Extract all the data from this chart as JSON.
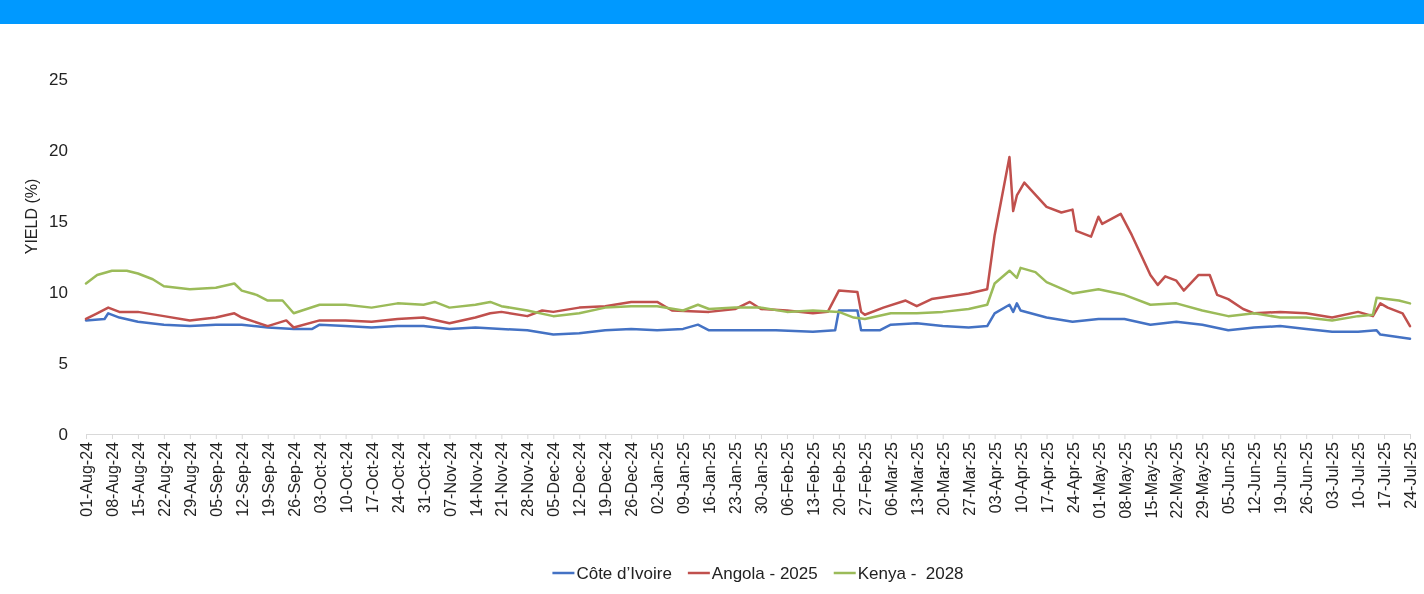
{
  "chart_data": {
    "type": "line",
    "ylabel": "YIELD (%)",
    "ylim": [
      0,
      25
    ],
    "yticks": [
      0,
      5,
      10,
      15,
      20,
      25
    ],
    "xlim": [
      "2024-08-01",
      "2025-07-24"
    ],
    "xticks": [
      {
        "value": "2024-08-01",
        "label": "01-Aug-24"
      },
      {
        "value": "2024-08-08",
        "label": "08-Aug-24"
      },
      {
        "value": "2024-08-15",
        "label": "15-Aug-24"
      },
      {
        "value": "2024-08-22",
        "label": "22-Aug-24"
      },
      {
        "value": "2024-08-29",
        "label": "29-Aug-24"
      },
      {
        "value": "2024-09-05",
        "label": "05-Sep-24"
      },
      {
        "value": "2024-09-12",
        "label": "12-Sep-24"
      },
      {
        "value": "2024-09-19",
        "label": "19-Sep-24"
      },
      {
        "value": "2024-09-26",
        "label": "26-Sep-24"
      },
      {
        "value": "2024-10-03",
        "label": "03-Oct-24"
      },
      {
        "value": "2024-10-10",
        "label": "10-Oct-24"
      },
      {
        "value": "2024-10-17",
        "label": "17-Oct-24"
      },
      {
        "value": "2024-10-24",
        "label": "24-Oct-24"
      },
      {
        "value": "2024-10-31",
        "label": "31-Oct-24"
      },
      {
        "value": "2024-11-07",
        "label": "07-Nov-24"
      },
      {
        "value": "2024-11-14",
        "label": "14-Nov-24"
      },
      {
        "value": "2024-11-21",
        "label": "21-Nov-24"
      },
      {
        "value": "2024-11-28",
        "label": "28-Nov-24"
      },
      {
        "value": "2024-12-05",
        "label": "05-Dec-24"
      },
      {
        "value": "2024-12-12",
        "label": "12-Dec-24"
      },
      {
        "value": "2024-12-19",
        "label": "19-Dec-24"
      },
      {
        "value": "2024-12-26",
        "label": "26-Dec-24"
      },
      {
        "value": "2025-01-02",
        "label": "02-Jan-25"
      },
      {
        "value": "2025-01-09",
        "label": "09-Jan-25"
      },
      {
        "value": "2025-01-16",
        "label": "16-Jan-25"
      },
      {
        "value": "2025-01-23",
        "label": "23-Jan-25"
      },
      {
        "value": "2025-01-30",
        "label": "30-Jan-25"
      },
      {
        "value": "2025-02-06",
        "label": "06-Feb-25"
      },
      {
        "value": "2025-02-13",
        "label": "13-Feb-25"
      },
      {
        "value": "2025-02-20",
        "label": "20-Feb-25"
      },
      {
        "value": "2025-02-27",
        "label": "27-Feb-25"
      },
      {
        "value": "2025-03-06",
        "label": "06-Mar-25"
      },
      {
        "value": "2025-03-13",
        "label": "13-Mar-25"
      },
      {
        "value": "2025-03-20",
        "label": "20-Mar-25"
      },
      {
        "value": "2025-03-27",
        "label": "27-Mar-25"
      },
      {
        "value": "2025-04-03",
        "label": "03-Apr-25"
      },
      {
        "value": "2025-04-10",
        "label": "10-Apr-25"
      },
      {
        "value": "2025-04-17",
        "label": "17-Apr-25"
      },
      {
        "value": "2025-04-24",
        "label": "24-Apr-25"
      },
      {
        "value": "2025-05-01",
        "label": "01-May-25"
      },
      {
        "value": "2025-05-08",
        "label": "08-May-25"
      },
      {
        "value": "2025-05-15",
        "label": "15-May-25"
      },
      {
        "value": "2025-05-22",
        "label": "22-May-25"
      },
      {
        "value": "2025-05-29",
        "label": "29-May-25"
      },
      {
        "value": "2025-06-05",
        "label": "05-Jun-25"
      },
      {
        "value": "2025-06-12",
        "label": "12-Jun-25"
      },
      {
        "value": "2025-06-19",
        "label": "19-Jun-25"
      },
      {
        "value": "2025-06-26",
        "label": "26-Jun-25"
      },
      {
        "value": "2025-07-03",
        "label": "03-Jul-25"
      },
      {
        "value": "2025-07-10",
        "label": "10-Jul-25"
      },
      {
        "value": "2025-07-17",
        "label": "17-Jul-25"
      },
      {
        "value": "2025-07-24",
        "label": "24-Jul-25"
      }
    ],
    "grid": false,
    "legend": "bottom",
    "marker": "none",
    "line_style": "solid",
    "series": [
      {
        "name": "Côte d’Ivoire",
        "color": "#4472c4",
        "x": [
          "2024-08-01",
          "2024-08-06",
          "2024-08-07",
          "2024-08-10",
          "2024-08-15",
          "2024-08-22",
          "2024-08-29",
          "2024-09-05",
          "2024-09-12",
          "2024-09-19",
          "2024-09-26",
          "2024-10-01",
          "2024-10-03",
          "2024-10-10",
          "2024-10-17",
          "2024-10-24",
          "2024-10-31",
          "2024-11-07",
          "2024-11-14",
          "2024-11-21",
          "2024-11-28",
          "2024-12-05",
          "2024-12-12",
          "2024-12-19",
          "2024-12-26",
          "2025-01-02",
          "2025-01-09",
          "2025-01-13",
          "2025-01-16",
          "2025-01-23",
          "2025-02-03",
          "2025-02-13",
          "2025-02-19",
          "2025-02-20",
          "2025-02-25",
          "2025-02-26",
          "2025-03-03",
          "2025-03-06",
          "2025-03-13",
          "2025-03-20",
          "2025-03-27",
          "2025-04-01",
          "2025-04-03",
          "2025-04-07",
          "2025-04-08",
          "2025-04-09",
          "2025-04-10",
          "2025-04-17",
          "2025-04-24",
          "2025-05-01",
          "2025-05-08",
          "2025-05-15",
          "2025-05-22",
          "2025-05-29",
          "2025-06-05",
          "2025-06-12",
          "2025-06-19",
          "2025-06-26",
          "2025-07-03",
          "2025-07-10",
          "2025-07-15",
          "2025-07-16",
          "2025-07-24"
        ],
        "values": [
          8.0,
          8.1,
          8.5,
          8.2,
          7.9,
          7.7,
          7.6,
          7.7,
          7.7,
          7.5,
          7.4,
          7.4,
          7.7,
          7.6,
          7.5,
          7.6,
          7.6,
          7.4,
          7.5,
          7.4,
          7.3,
          7.0,
          7.1,
          7.3,
          7.4,
          7.3,
          7.4,
          7.7,
          7.3,
          7.3,
          7.3,
          7.2,
          7.3,
          8.7,
          8.7,
          7.3,
          7.3,
          7.7,
          7.8,
          7.6,
          7.5,
          7.6,
          8.5,
          9.1,
          8.6,
          9.2,
          8.7,
          8.2,
          7.9,
          8.1,
          8.1,
          7.7,
          7.9,
          7.7,
          7.3,
          7.5,
          7.6,
          7.4,
          7.2,
          7.2,
          7.3,
          7.0,
          6.7
        ]
      },
      {
        "name": "Angola - 2025",
        "color": "#c0504d",
        "x": [
          "2024-08-01",
          "2024-08-04",
          "2024-08-07",
          "2024-08-10",
          "2024-08-15",
          "2024-08-22",
          "2024-08-29",
          "2024-09-05",
          "2024-09-10",
          "2024-09-12",
          "2024-09-19",
          "2024-09-24",
          "2024-09-26",
          "2024-10-03",
          "2024-10-10",
          "2024-10-17",
          "2024-10-24",
          "2024-10-31",
          "2024-11-07",
          "2024-11-14",
          "2024-11-18",
          "2024-11-21",
          "2024-11-28",
          "2024-12-02",
          "2024-12-05",
          "2024-12-12",
          "2024-12-19",
          "2024-12-26",
          "2025-01-02",
          "2025-01-06",
          "2025-01-16",
          "2025-01-23",
          "2025-01-27",
          "2025-01-30",
          "2025-02-06",
          "2025-02-13",
          "2025-02-17",
          "2025-02-20",
          "2025-02-25",
          "2025-02-26",
          "2025-02-27",
          "2025-03-04",
          "2025-03-10",
          "2025-03-13",
          "2025-03-17",
          "2025-03-27",
          "2025-04-01",
          "2025-04-03",
          "2025-04-07",
          "2025-04-08",
          "2025-04-09",
          "2025-04-11",
          "2025-04-17",
          "2025-04-21",
          "2025-04-24",
          "2025-04-25",
          "2025-04-29",
          "2025-05-01",
          "2025-05-02",
          "2025-05-07",
          "2025-05-10",
          "2025-05-15",
          "2025-05-17",
          "2025-05-19",
          "2025-05-22",
          "2025-05-24",
          "2025-05-28",
          "2025-05-31",
          "2025-06-02",
          "2025-06-05",
          "2025-06-09",
          "2025-06-12",
          "2025-06-19",
          "2025-06-26",
          "2025-07-03",
          "2025-07-10",
          "2025-07-14",
          "2025-07-16",
          "2025-07-18",
          "2025-07-22",
          "2025-07-24"
        ],
        "values": [
          8.1,
          8.5,
          8.9,
          8.6,
          8.6,
          8.3,
          8.0,
          8.2,
          8.5,
          8.2,
          7.6,
          8.0,
          7.5,
          8.0,
          8.0,
          7.9,
          8.1,
          8.2,
          7.8,
          8.2,
          8.5,
          8.6,
          8.3,
          8.7,
          8.6,
          8.9,
          9.0,
          9.3,
          9.3,
          8.7,
          8.6,
          8.8,
          9.3,
          8.8,
          8.7,
          8.5,
          8.6,
          10.1,
          10.0,
          8.6,
          8.4,
          8.9,
          9.4,
          9.0,
          9.5,
          9.9,
          10.2,
          14.0,
          19.5,
          15.7,
          16.8,
          17.7,
          16.0,
          15.6,
          15.8,
          14.3,
          13.9,
          15.3,
          14.8,
          15.5,
          14.0,
          11.2,
          10.5,
          11.1,
          10.8,
          10.1,
          11.2,
          11.2,
          9.8,
          9.5,
          8.8,
          8.5,
          8.6,
          8.5,
          8.2,
          8.6,
          8.3,
          9.2,
          8.9,
          8.5,
          7.6
        ]
      },
      {
        "name": "Kenya -  2028",
        "color": "#9bbb59",
        "x": [
          "2024-08-01",
          "2024-08-04",
          "2024-08-08",
          "2024-08-12",
          "2024-08-15",
          "2024-08-19",
          "2024-08-22",
          "2024-08-29",
          "2024-09-05",
          "2024-09-10",
          "2024-09-12",
          "2024-09-16",
          "2024-09-19",
          "2024-09-23",
          "2024-09-26",
          "2024-10-03",
          "2024-10-10",
          "2024-10-17",
          "2024-10-24",
          "2024-10-31",
          "2024-11-03",
          "2024-11-07",
          "2024-11-14",
          "2024-11-18",
          "2024-11-21",
          "2024-11-28",
          "2024-12-05",
          "2024-12-12",
          "2024-12-19",
          "2024-12-26",
          "2025-01-02",
          "2025-01-09",
          "2025-01-13",
          "2025-01-16",
          "2025-01-23",
          "2025-01-30",
          "2025-02-06",
          "2025-02-13",
          "2025-02-20",
          "2025-02-24",
          "2025-02-27",
          "2025-03-06",
          "2025-03-13",
          "2025-03-20",
          "2025-03-27",
          "2025-04-01",
          "2025-04-03",
          "2025-04-07",
          "2025-04-09",
          "2025-04-10",
          "2025-04-14",
          "2025-04-17",
          "2025-04-24",
          "2025-05-01",
          "2025-05-08",
          "2025-05-15",
          "2025-05-22",
          "2025-05-29",
          "2025-06-05",
          "2025-06-12",
          "2025-06-19",
          "2025-06-26",
          "2025-07-03",
          "2025-07-10",
          "2025-07-14",
          "2025-07-15",
          "2025-07-21",
          "2025-07-24"
        ],
        "values": [
          10.6,
          11.2,
          11.5,
          11.5,
          11.3,
          10.9,
          10.4,
          10.2,
          10.3,
          10.6,
          10.1,
          9.8,
          9.4,
          9.4,
          8.5,
          9.1,
          9.1,
          8.9,
          9.2,
          9.1,
          9.3,
          8.9,
          9.1,
          9.3,
          9.0,
          8.7,
          8.3,
          8.5,
          8.9,
          9.0,
          9.0,
          8.7,
          9.1,
          8.8,
          8.9,
          8.9,
          8.6,
          8.7,
          8.6,
          8.2,
          8.1,
          8.5,
          8.5,
          8.6,
          8.8,
          9.1,
          10.6,
          11.5,
          11.0,
          11.7,
          11.4,
          10.7,
          9.9,
          10.2,
          9.8,
          9.1,
          9.2,
          8.7,
          8.3,
          8.5,
          8.2,
          8.2,
          8.0,
          8.3,
          8.4,
          9.6,
          9.4,
          9.2
        ]
      }
    ]
  }
}
